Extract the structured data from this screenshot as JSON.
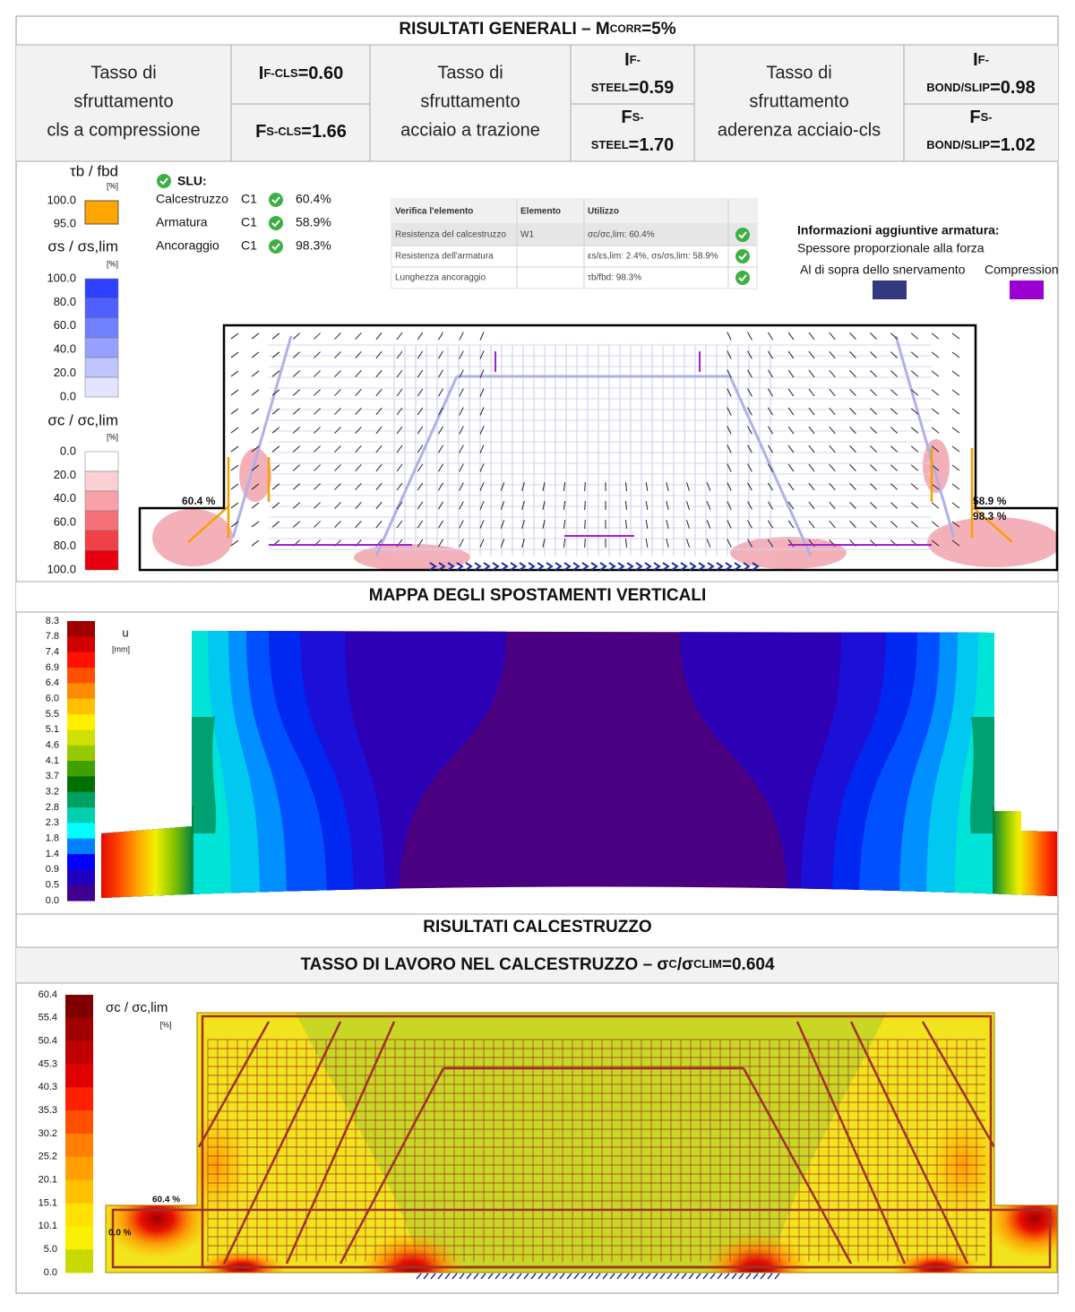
{
  "header": {
    "title_main": "RISULTATI GENERALI – M",
    "title_sub": "CORR",
    "title_tail": "=5%"
  },
  "summary": [
    {
      "description": [
        "Tasso di",
        "sfruttamento",
        "cls a compressione"
      ],
      "factors": [
        {
          "symbol": "I",
          "sub": "F-CLS",
          "value": "=0.60"
        },
        {
          "symbol": "F",
          "sub": "S-CLS",
          "value": "=1.66"
        }
      ]
    },
    {
      "description": [
        "Tasso di",
        "sfruttamento",
        "acciaio a trazione"
      ],
      "factors": [
        {
          "symbol": "I",
          "sub_1": "F-",
          "sub_2": "STEEL",
          "value": "=0.59"
        },
        {
          "symbol": "F",
          "sub_1": "S-",
          "sub_2": "STEEL",
          "value": "=1.70"
        }
      ]
    },
    {
      "description": [
        "Tasso di",
        "sfruttamento",
        "aderenza acciaio-cls"
      ],
      "factors": [
        {
          "symbol": "I",
          "sub_1": "F-",
          "sub_2": "BOND/SLIP",
          "value": "=0.98"
        },
        {
          "symbol": "F",
          "sub_1": "S-",
          "sub_2": "BOND/SLIP",
          "value": "=1.02"
        }
      ]
    }
  ],
  "verification": {
    "bond_legend": {
      "title": "τb / fbd",
      "unit": "[%]",
      "ticks": [
        "100.0",
        "95.0"
      ]
    },
    "steel_legend": {
      "title": "σs / σs,lim",
      "unit": "[%]",
      "ticks": [
        "100.0",
        "80.0",
        "60.0",
        "40.0",
        "20.0",
        "0.0"
      ]
    },
    "concrete_legend": {
      "title": "σc / σc,lim",
      "unit": "[%]",
      "ticks": [
        "0.0",
        "20.0",
        "40.0",
        "60.0",
        "80.0",
        "100.0"
      ]
    },
    "slu": {
      "title": "SLU:",
      "rows": [
        [
          "Calcestruzzo",
          "C1",
          "60.4%"
        ],
        [
          "Armatura",
          "C1",
          "58.9%"
        ],
        [
          "Ancoraggio",
          "C1",
          "98.3%"
        ]
      ]
    },
    "table": {
      "headers": [
        "Verifica l'elemento",
        "Elemento",
        "Utilizzo"
      ],
      "rows": [
        [
          "Resistenza del calcestruzzo",
          "W1",
          "σc/σc,lim: 60.4%"
        ],
        [
          "Resistenza dell'armatura",
          "",
          "εs/εs,lim: 2.4%, σs/σs,lim: 58.9%"
        ],
        [
          "Lunghezza ancoraggio",
          "",
          "τb/fbd: 98.3%"
        ]
      ]
    },
    "info": {
      "title": "Informazioni aggiuntive armatura:",
      "line": "Spessore proporzionale alla forza",
      "yield": "Al di sopra dello snervamento",
      "compression": "Compressione"
    },
    "diagram_labels": [
      "60.4 %",
      "58.9 %",
      "98.3 %"
    ]
  },
  "displacement": {
    "title": "MAPPA DEGLI SPOSTAMENTI VERTICALI",
    "legend_title": "u",
    "legend_unit": "[mm]",
    "legend_ticks": [
      "8.3",
      "7.8",
      "7.4",
      "6.9",
      "6.4",
      "6.0",
      "5.5",
      "5.1",
      "4.6",
      "4.1",
      "3.7",
      "3.2",
      "2.8",
      "2.3",
      "1.8",
      "1.4",
      "0.9",
      "0.5",
      "0.0"
    ]
  },
  "concrete": {
    "title": "RISULTATI CALCESTRUZZO",
    "subtitle_main": "TASSO DI LAVORO NEL CALCESTRUZZO – σ",
    "subtitle_sub_1": "C",
    "subtitle_mid": "/σ",
    "subtitle_sub_2": "CLIM",
    "subtitle_tail": "=0.604",
    "legend_title": "σc / σc,lim",
    "legend_unit": "[%]",
    "legend_ticks": [
      "60.4",
      "55.4",
      "50.4",
      "45.3",
      "40.3",
      "35.3",
      "30.2",
      "25.2",
      "20.1",
      "15.1",
      "10.1",
      "5.0",
      "0.0"
    ],
    "labels": [
      "60.4 %",
      "0.0 %"
    ]
  }
}
